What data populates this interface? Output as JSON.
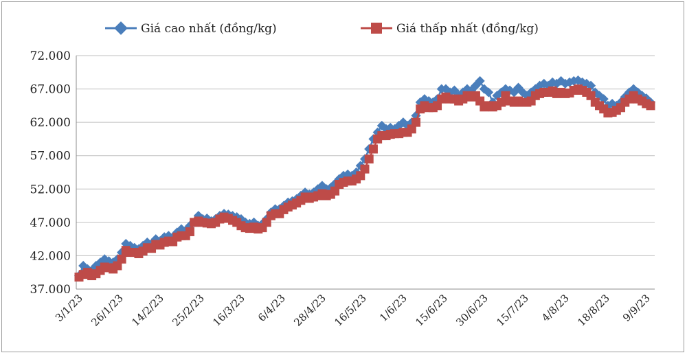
{
  "chart_data": {
    "type": "line",
    "title": "",
    "xlabel": "",
    "ylabel": "",
    "ylim": [
      37000,
      72000
    ],
    "y_ticks": [
      "37.000",
      "42.000",
      "47.000",
      "52.000",
      "57.000",
      "62.000",
      "67.000",
      "72.000"
    ],
    "x_tick_labels": [
      "3/1/23",
      "26/1/23",
      "14/2/23",
      "25/2/23",
      "16/3/23",
      "6/4/23",
      "28/4/23",
      "16/5/23",
      "1/6/23",
      "15/6/23",
      "30/6/23",
      "15/7/23",
      "4/8/23",
      "18/8/23",
      "9/9/23"
    ],
    "grid": "horizontal",
    "legend_position": "top",
    "series": [
      {
        "name": "Giá cao nhất (đồng/kg)",
        "color": "#4a7ebb",
        "marker": "diamond",
        "values": [
          39000,
          40500,
          40000,
          39800,
          40500,
          41000,
          41500,
          41200,
          41000,
          41500,
          42500,
          43800,
          43500,
          43200,
          43000,
          43500,
          44000,
          43800,
          44500,
          44200,
          44800,
          45000,
          44800,
          45500,
          46000,
          45800,
          46500,
          47000,
          48000,
          47500,
          47600,
          47200,
          47500,
          48000,
          48300,
          48200,
          48000,
          47800,
          47500,
          47000,
          46800,
          47000,
          46500,
          46800,
          47500,
          48500,
          49000,
          49000,
          49500,
          50000,
          50200,
          50500,
          51000,
          51500,
          51200,
          51500,
          52000,
          52500,
          52000,
          52200,
          52800,
          53500,
          54000,
          54200,
          54000,
          54500,
          55500,
          56500,
          58000,
          59500,
          60500,
          61500,
          61000,
          61200,
          61000,
          61500,
          62000,
          61500,
          62000,
          63000,
          65000,
          65500,
          65200,
          65000,
          65500,
          67000,
          67000,
          66500,
          66800,
          66000,
          66500,
          67000,
          66800,
          67500,
          68200,
          67000,
          66500,
          65000,
          66000,
          66500,
          67000,
          66800,
          66500,
          67200,
          66500,
          66000,
          66500,
          67000,
          67500,
          67800,
          67500,
          68000,
          67800,
          68200,
          67800,
          68000,
          68200,
          68300,
          68000,
          67800,
          67500,
          66500,
          66000,
          65500,
          64500,
          64800,
          64500,
          65000,
          65800,
          66500,
          67000,
          66500,
          66000,
          65600,
          65000
        ]
      },
      {
        "name": "Giá thấp nhất (đồng/kg)",
        "color": "#be4b48",
        "marker": "square",
        "values": [
          38800,
          39200,
          39500,
          39000,
          39300,
          39800,
          40300,
          40200,
          40000,
          40500,
          41500,
          42800,
          42500,
          42500,
          42300,
          42700,
          43200,
          43100,
          43700,
          43600,
          44000,
          44200,
          44100,
          44800,
          45000,
          45000,
          45600,
          47000,
          47200,
          47000,
          46900,
          46800,
          47000,
          47500,
          47800,
          47600,
          47300,
          47000,
          46500,
          46200,
          46100,
          46300,
          46000,
          46200,
          47000,
          48000,
          48300,
          48300,
          48900,
          49300,
          49600,
          49900,
          50300,
          50800,
          50600,
          50800,
          51000,
          51300,
          51000,
          51200,
          51700,
          52700,
          53000,
          53200,
          53200,
          53500,
          54000,
          55000,
          56500,
          58000,
          59500,
          60000,
          60000,
          60200,
          60300,
          60300,
          60500,
          60500,
          61000,
          62000,
          64000,
          64500,
          64200,
          64200,
          64500,
          65500,
          65800,
          65500,
          65500,
          65200,
          65500,
          66000,
          65800,
          66000,
          65200,
          64300,
          64500,
          64300,
          64500,
          65000,
          66000,
          65200,
          65000,
          65200,
          65000,
          65000,
          65200,
          66000,
          66300,
          66500,
          66500,
          66700,
          66300,
          66500,
          66300,
          66400,
          66800,
          67000,
          66800,
          66500,
          66000,
          65000,
          64500,
          64000,
          63400,
          63500,
          63800,
          64200,
          65000,
          65500,
          66000,
          65500,
          65200,
          64800,
          64500
        ]
      }
    ]
  }
}
